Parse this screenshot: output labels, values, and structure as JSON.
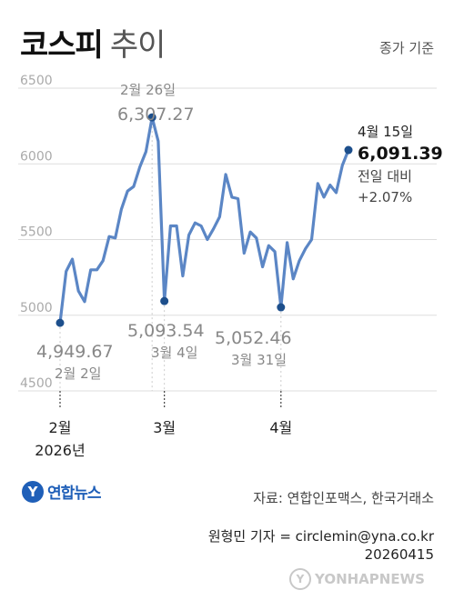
{
  "header": {
    "title_bold": "코스피",
    "title_light": "추이",
    "basis": "종가 기준"
  },
  "chart_data": {
    "type": "line",
    "series": [
      {
        "values": [
          4949.67,
          5290,
          5370,
          5160,
          5090,
          5300,
          5300,
          5360,
          5520,
          5510,
          5700,
          5820,
          5850,
          5980,
          6080,
          6307.27,
          6150,
          5093.54,
          5590,
          5590,
          5260,
          5530,
          5610,
          5590,
          5500,
          5570,
          5650,
          5930,
          5780,
          5770,
          5410,
          5550,
          5510,
          5320,
          5460,
          5420,
          5052.46,
          5480,
          5240,
          5360,
          5440,
          5500,
          5870,
          5780,
          5860,
          5810,
          5990,
          6091.39
        ]
      }
    ],
    "ylim": [
      4500,
      6500
    ],
    "yticks": [
      "6500",
      "6000",
      "5500",
      "5000",
      "4500"
    ],
    "ytick_values": [
      6500,
      6000,
      5500,
      5000,
      4500
    ],
    "xticks": [
      {
        "label": "2월",
        "index": 0
      },
      {
        "label": "3월",
        "index": 17
      },
      {
        "label": "4월",
        "index": 36
      }
    ],
    "year_label": "2026년",
    "annotations": [
      {
        "index": 0,
        "value": "4,949.67",
        "date": "2월 2일"
      },
      {
        "index": 15,
        "value": "6,307.27",
        "date": "2월 26일"
      },
      {
        "index": 17,
        "value": "5,093.54",
        "date": "3월 4일"
      },
      {
        "index": 36,
        "value": "5,052.46",
        "date": "3월 31일"
      },
      {
        "index": 47,
        "value": "6,091.39",
        "date": "4월 15일",
        "change_label": "전일 대비",
        "change": "+2.07%"
      }
    ],
    "colors": {
      "line": "#5b86c5",
      "marker": "#1d4f8c",
      "grid": "#dddddd",
      "tick_text": "#aaaaaa",
      "annotation_text": "#888888"
    }
  },
  "footer": {
    "logo_text": "연합뉴스",
    "source": "자료: 연합인포맥스, 한국거래소",
    "reporter": "원형민 기자 = circlemin@yna.co.kr",
    "date": "20260415",
    "watermark": "YONHAPNEWS"
  }
}
